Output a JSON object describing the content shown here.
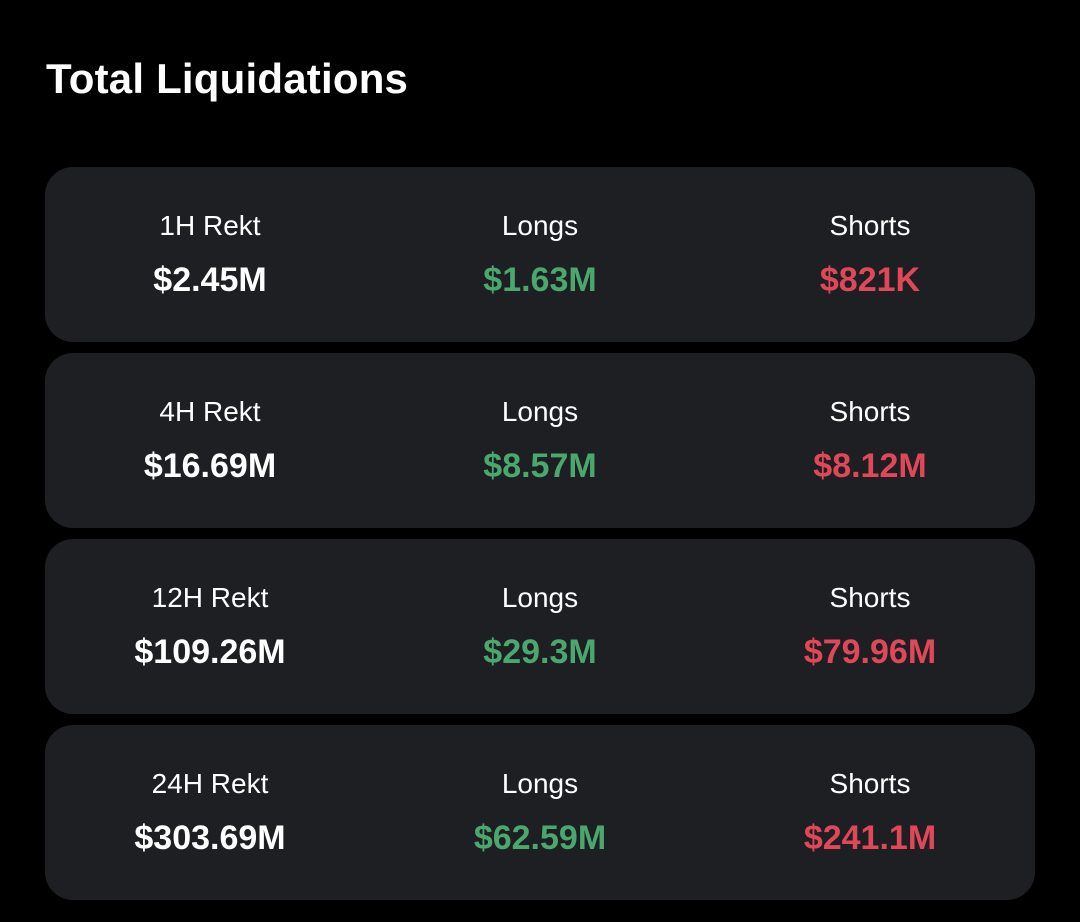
{
  "page": {
    "title": "Total Liquidations"
  },
  "colors": {
    "background": "#000000",
    "card": "#1e1f23",
    "text": "#ffffff",
    "longs": "#4aa86f",
    "shorts": "#e0485a"
  },
  "rows": [
    {
      "period_label": "1H Rekt",
      "total": "$2.45M",
      "longs_label": "Longs",
      "longs_value": "$1.63M",
      "shorts_label": "Shorts",
      "shorts_value": "$821K"
    },
    {
      "period_label": "4H Rekt",
      "total": "$16.69M",
      "longs_label": "Longs",
      "longs_value": "$8.57M",
      "shorts_label": "Shorts",
      "shorts_value": "$8.12M"
    },
    {
      "period_label": "12H Rekt",
      "total": "$109.26M",
      "longs_label": "Longs",
      "longs_value": "$29.3M",
      "shorts_label": "Shorts",
      "shorts_value": "$79.96M"
    },
    {
      "period_label": "24H Rekt",
      "total": "$303.69M",
      "longs_label": "Longs",
      "longs_value": "$62.59M",
      "shorts_label": "Shorts",
      "shorts_value": "$241.1M"
    }
  ]
}
